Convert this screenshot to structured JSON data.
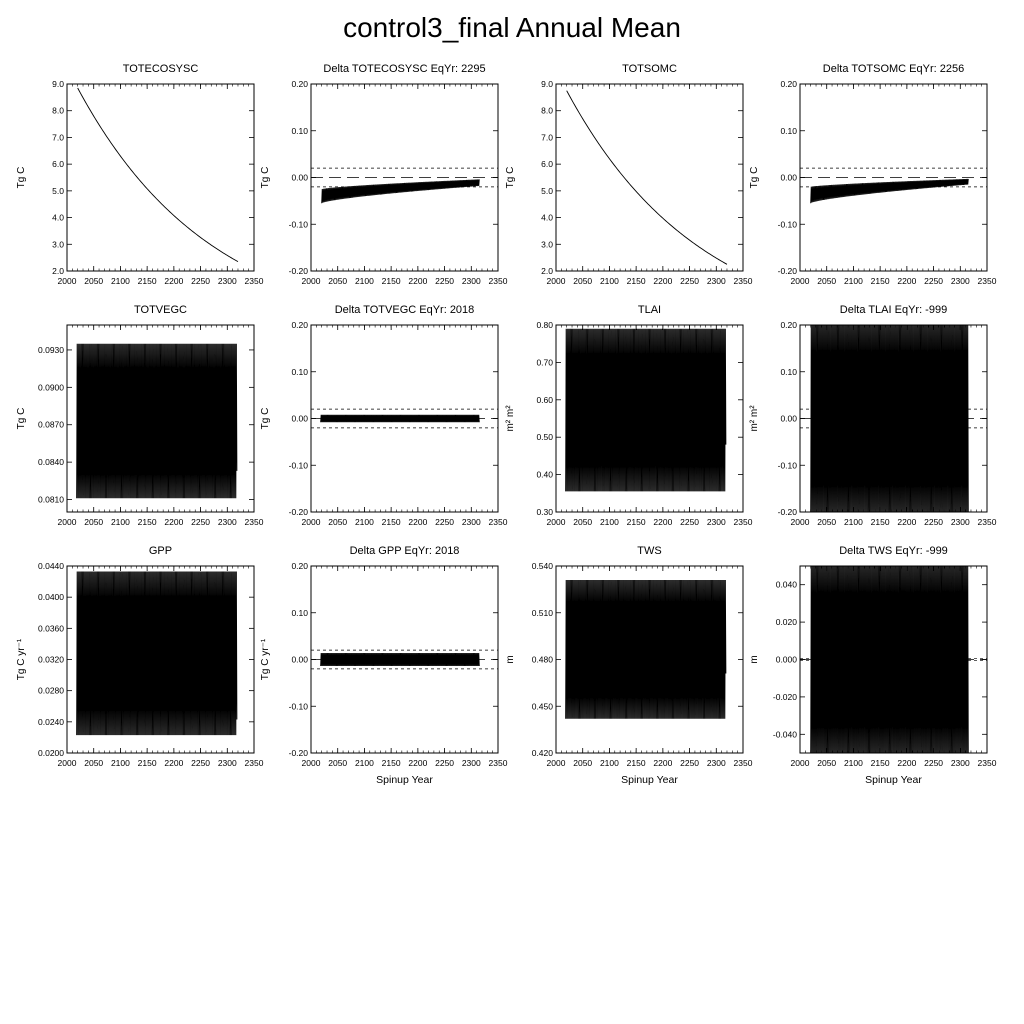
{
  "title": "control3_final Annual Mean",
  "chart_data": [
    {
      "type": "line",
      "title": "TOTECOSYSC",
      "ylabel": "Tg C",
      "xlabel": "",
      "xlim": [
        2000,
        2350
      ],
      "ylim": [
        2.0,
        9.0
      ],
      "xticks": [
        "2000",
        "2050",
        "2100",
        "2150",
        "2200",
        "2250",
        "2300",
        "2350"
      ],
      "yticks": [
        "2.0",
        "3.0",
        "4.0",
        "5.0",
        "6.0",
        "7.0",
        "8.0",
        "9.0"
      ],
      "pattern": "decay",
      "x": [
        2020,
        2320
      ],
      "y": [
        8.85,
        2.35
      ]
    },
    {
      "type": "line",
      "title": "Delta TOTECOSYSC EqYr: 2295",
      "ylabel": "Tg C",
      "xlabel": "",
      "xlim": [
        2000,
        2350
      ],
      "ylim": [
        -0.2,
        0.2
      ],
      "xticks": [
        "2000",
        "2050",
        "2100",
        "2150",
        "2200",
        "2250",
        "2300",
        "2350"
      ],
      "yticks": [
        "-0.20",
        "-0.10",
        "0.00",
        "0.10",
        "0.20"
      ],
      "pattern": "band",
      "x": [
        2020,
        2315
      ],
      "band_low": [
        -0.055,
        -0.018
      ],
      "band_high": [
        -0.025,
        -0.004
      ],
      "ref_lines": [
        0.02,
        -0.02
      ]
    },
    {
      "type": "line",
      "title": "TOTSOMC",
      "ylabel": "Tg C",
      "xlabel": "",
      "xlim": [
        2000,
        2350
      ],
      "ylim": [
        2.0,
        9.0
      ],
      "xticks": [
        "2000",
        "2050",
        "2100",
        "2150",
        "2200",
        "2250",
        "2300",
        "2350"
      ],
      "yticks": [
        "2.0",
        "3.0",
        "4.0",
        "5.0",
        "6.0",
        "7.0",
        "8.0",
        "9.0"
      ],
      "pattern": "decay",
      "x": [
        2020,
        2320
      ],
      "y": [
        8.75,
        2.25
      ]
    },
    {
      "type": "line",
      "title": "Delta TOTSOMC EqYr: 2256",
      "ylabel": "Tg C",
      "xlabel": "",
      "xlim": [
        2000,
        2350
      ],
      "ylim": [
        -0.2,
        0.2
      ],
      "xticks": [
        "2000",
        "2050",
        "2100",
        "2150",
        "2200",
        "2250",
        "2300",
        "2350"
      ],
      "yticks": [
        "-0.20",
        "-0.10",
        "0.00",
        "0.10",
        "0.20"
      ],
      "pattern": "band",
      "x": [
        2020,
        2315
      ],
      "band_low": [
        -0.055,
        -0.015
      ],
      "band_high": [
        -0.02,
        -0.003
      ],
      "ref_lines": [
        0.02,
        -0.02
      ]
    },
    {
      "type": "line",
      "title": "TOTVEGC",
      "ylabel": "Tg C",
      "xlabel": "",
      "xlim": [
        2000,
        2350
      ],
      "ylim": [
        0.08,
        0.095
      ],
      "xticks": [
        "2000",
        "2050",
        "2100",
        "2150",
        "2200",
        "2250",
        "2300",
        "2350"
      ],
      "yticks": [
        "0.0810",
        "0.0840",
        "0.0870",
        "0.0900",
        "0.0930"
      ],
      "ytick_values": [
        0.081,
        0.084,
        0.087,
        0.09,
        0.093
      ],
      "pattern": "oscillate",
      "x": [
        2018,
        2318
      ],
      "range": [
        0.0811,
        0.0935
      ],
      "end_value": 0.0833
    },
    {
      "type": "line",
      "title": "Delta TOTVEGC EqYr: 2018",
      "ylabel": "Tg C",
      "xlabel": "",
      "xlim": [
        2000,
        2350
      ],
      "ylim": [
        -0.2,
        0.2
      ],
      "xticks": [
        "2000",
        "2050",
        "2100",
        "2150",
        "2200",
        "2250",
        "2300",
        "2350"
      ],
      "yticks": [
        "-0.20",
        "-0.10",
        "0.00",
        "0.10",
        "0.20"
      ],
      "pattern": "oscillate",
      "x": [
        2018,
        2315
      ],
      "range": [
        -0.008,
        0.008
      ],
      "ref_lines": [
        0.02,
        -0.02
      ]
    },
    {
      "type": "line",
      "title": "TLAI",
      "ylabel": "m² m²",
      "xlabel": "",
      "xlim": [
        2000,
        2350
      ],
      "ylim": [
        0.3,
        0.8
      ],
      "xticks": [
        "2000",
        "2050",
        "2100",
        "2150",
        "2200",
        "2250",
        "2300",
        "2350"
      ],
      "yticks": [
        "0.30",
        "0.40",
        "0.50",
        "0.60",
        "0.70",
        "0.80"
      ],
      "pattern": "oscillate",
      "x": [
        2018,
        2318
      ],
      "range": [
        0.355,
        0.79
      ],
      "end_value": 0.48
    },
    {
      "type": "line",
      "title": "Delta TLAI EqYr: -999",
      "ylabel": "m² m²",
      "xlabel": "",
      "xlim": [
        2000,
        2350
      ],
      "ylim": [
        -0.2,
        0.2
      ],
      "xticks": [
        "2000",
        "2050",
        "2100",
        "2150",
        "2200",
        "2250",
        "2300",
        "2350"
      ],
      "yticks": [
        "-0.20",
        "-0.10",
        "0.00",
        "0.10",
        "0.20"
      ],
      "pattern": "oscillate",
      "x": [
        2020,
        2315
      ],
      "range": [
        -0.2,
        0.2
      ],
      "ref_lines": [
        0.02,
        -0.02
      ]
    },
    {
      "type": "line",
      "title": "GPP",
      "ylabel": "Tg C yr⁻¹",
      "xlabel": "",
      "xlim": [
        2000,
        2350
      ],
      "ylim": [
        0.02,
        0.044
      ],
      "xticks": [
        "2000",
        "2050",
        "2100",
        "2150",
        "2200",
        "2250",
        "2300",
        "2350"
      ],
      "yticks": [
        "0.0200",
        "0.0240",
        "0.0280",
        "0.0320",
        "0.0360",
        "0.0400",
        "0.0440"
      ],
      "ytick_values": [
        0.02,
        0.024,
        0.028,
        0.032,
        0.036,
        0.04,
        0.044
      ],
      "pattern": "oscillate",
      "x": [
        2018,
        2318
      ],
      "range": [
        0.0223,
        0.0433
      ],
      "end_value": 0.0243
    },
    {
      "type": "line",
      "title": "Delta GPP EqYr: 2018",
      "ylabel": "Tg C yr⁻¹",
      "xlabel": "Spinup Year",
      "xlim": [
        2000,
        2350
      ],
      "ylim": [
        -0.2,
        0.2
      ],
      "xticks": [
        "2000",
        "2050",
        "2100",
        "2150",
        "2200",
        "2250",
        "2300",
        "2350"
      ],
      "yticks": [
        "-0.20",
        "-0.10",
        "0.00",
        "0.10",
        "0.20"
      ],
      "pattern": "oscillate",
      "x": [
        2018,
        2315
      ],
      "range": [
        -0.014,
        0.014
      ],
      "ref_lines": [
        0.02,
        -0.02
      ]
    },
    {
      "type": "line",
      "title": "TWS",
      "ylabel": "m",
      "xlabel": "Spinup Year",
      "xlim": [
        2000,
        2350
      ],
      "ylim": [
        0.42,
        0.54
      ],
      "xticks": [
        "2000",
        "2050",
        "2100",
        "2150",
        "2200",
        "2250",
        "2300",
        "2350"
      ],
      "yticks": [
        "0.420",
        "0.450",
        "0.480",
        "0.510",
        "0.540"
      ],
      "pattern": "oscillate",
      "x": [
        2018,
        2318
      ],
      "range": [
        0.442,
        0.531
      ],
      "end_value": 0.471
    },
    {
      "type": "line",
      "title": "Delta TWS EqYr: -999",
      "ylabel": "m",
      "xlabel": "Spinup Year",
      "xlim": [
        2000,
        2350
      ],
      "ylim": [
        -0.05,
        0.05
      ],
      "xticks": [
        "2000",
        "2050",
        "2100",
        "2150",
        "2200",
        "2250",
        "2300",
        "2350"
      ],
      "yticks": [
        "-0.040",
        "-0.020",
        "0.000",
        "0.020",
        "0.040"
      ],
      "ytick_values": [
        -0.04,
        -0.02,
        0,
        0.02,
        0.04
      ],
      "pattern": "oscillate",
      "x": [
        2020,
        2315
      ],
      "range": [
        -0.05,
        0.05
      ],
      "ref_lines": [
        0.0005,
        -0.0005
      ]
    }
  ]
}
